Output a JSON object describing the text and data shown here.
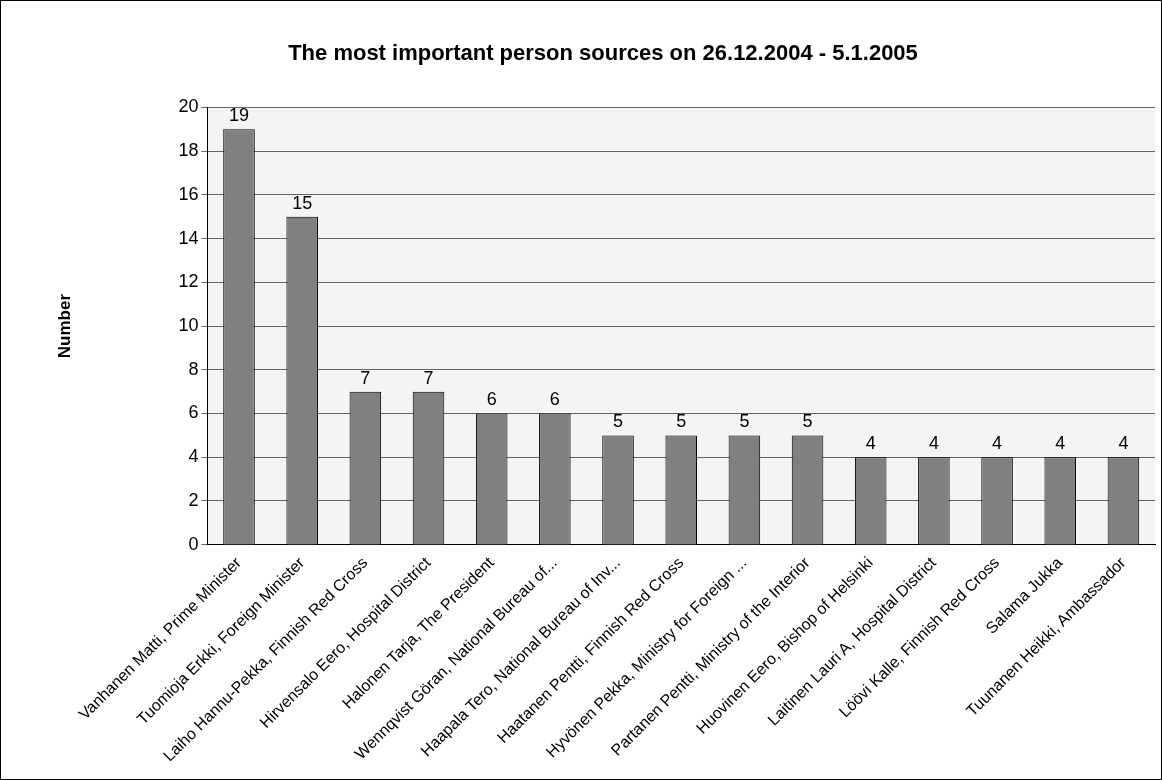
{
  "chart_data": {
    "type": "bar",
    "title": "The most important person sources on 26.12.2004 - 5.1.2005",
    "ylabel": "Number",
    "categories": [
      "Vanhanen Matti, Prime Minister",
      "Tuomioja Erkki, Foreign Minister",
      "Laiho Hannu-Pekka, Finnish Red Cross",
      "Hirvensalo Eero, Hospital District",
      "Halonen Tarja, The President",
      "Wennqvist Göran, National Bureau of...",
      "Haapala Tero, National Bureau of Inv...",
      "Haatanen Pentti, Finnish Red Cross",
      "Hyvönen Pekka, Ministry for Foreign ...",
      "Partanen Pentti, Ministry of the Interior",
      "Huovinen Eero, Bishop of Helsinki",
      "Laitinen Lauri A, Hospital District",
      "Löövi Kalle, Finnish Red Cross",
      "Salama Jukka",
      "Tuunanen Heikki, Ambassador"
    ],
    "values": [
      19,
      15,
      7,
      7,
      6,
      6,
      5,
      5,
      5,
      5,
      4,
      4,
      4,
      4,
      4
    ],
    "color": "#808080",
    "ylim": [
      0,
      20
    ],
    "yticks": [
      0,
      2,
      4,
      6,
      8,
      10,
      12,
      14,
      16,
      18,
      20
    ],
    "grid": "y",
    "data_labels": true,
    "legend": false
  }
}
